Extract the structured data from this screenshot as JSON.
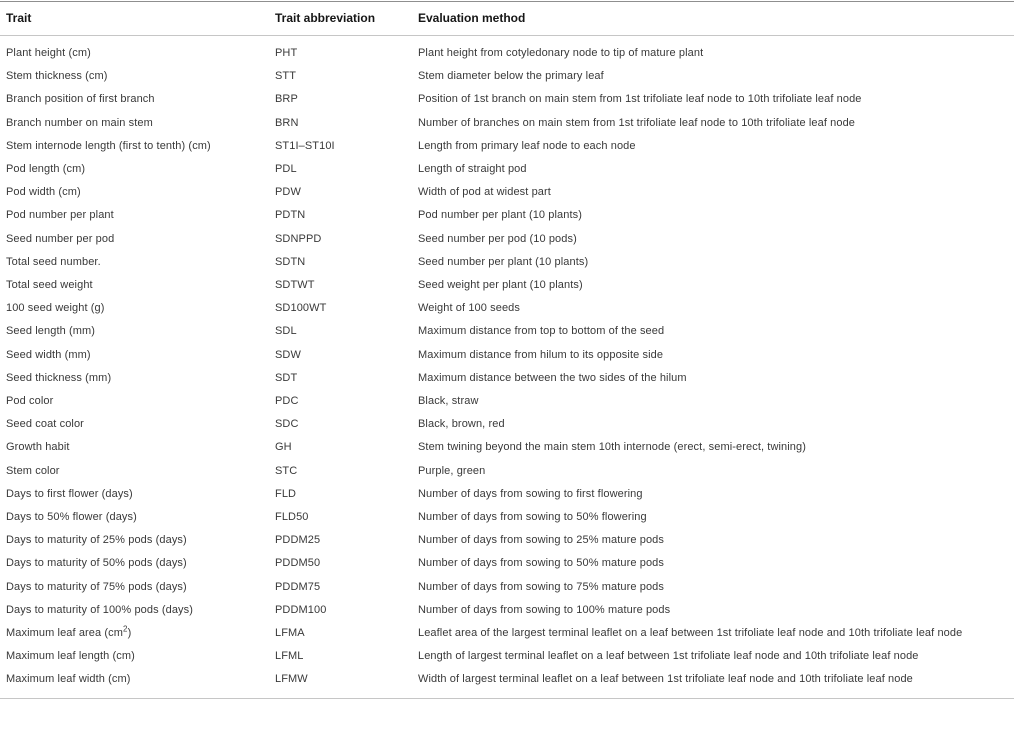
{
  "colors": {
    "background": "#ffffff",
    "top_rule": "#8f8f8f",
    "inner_rule": "#c6c6c6",
    "header_text": "#161616",
    "body_text": "#393939"
  },
  "table": {
    "columns": [
      "Trait",
      "Trait abbreviation",
      "Evaluation method"
    ],
    "rows": [
      {
        "trait": "Plant height (cm)",
        "abbr": "PHT",
        "method": "Plant height from cotyledonary node to tip of mature plant"
      },
      {
        "trait": "Stem thickness (cm)",
        "abbr": "STT",
        "method": "Stem diameter below the primary leaf"
      },
      {
        "trait": "Branch position of first branch",
        "abbr": "BRP",
        "method": "Position of 1st branch on main stem from 1st trifoliate leaf node to 10th trifoliate leaf node"
      },
      {
        "trait": "Branch number on main stem",
        "abbr": "BRN",
        "method": "Number of branches on main stem from 1st trifoliate leaf node to 10th trifoliate leaf node"
      },
      {
        "trait": "Stem internode length (first to tenth) (cm)",
        "abbr": "ST1I–ST10I",
        "method": "Length from primary leaf node to each node"
      },
      {
        "trait": "Pod length (cm)",
        "abbr": "PDL",
        "method": "Length of straight pod"
      },
      {
        "trait": "Pod width (cm)",
        "abbr": "PDW",
        "method": "Width of pod at widest part"
      },
      {
        "trait": "Pod number per plant",
        "abbr": "PDTN",
        "method": "Pod number per plant (10 plants)"
      },
      {
        "trait": "Seed number per pod",
        "abbr": "SDNPPD",
        "method": "Seed number per pod (10 pods)"
      },
      {
        "trait": "Total seed number.",
        "abbr": "SDTN",
        "method": "Seed number per plant (10 plants)"
      },
      {
        "trait": "Total seed weight",
        "abbr": "SDTWT",
        "method": "Seed weight per plant (10 plants)"
      },
      {
        "trait": "100 seed weight (g)",
        "abbr": "SD100WT",
        "method": "Weight of 100 seeds"
      },
      {
        "trait": "Seed length (mm)",
        "abbr": "SDL",
        "method": "Maximum distance from top to bottom of the seed"
      },
      {
        "trait": "Seed width (mm)",
        "abbr": "SDW",
        "method": "Maximum distance from hilum to its opposite side"
      },
      {
        "trait": "Seed thickness (mm)",
        "abbr": "SDT",
        "method": "Maximum distance between the two sides of the hilum"
      },
      {
        "trait": "Pod color",
        "abbr": "PDC",
        "method": "Black, straw"
      },
      {
        "trait": "Seed coat color",
        "abbr": "SDC",
        "method": "Black, brown, red"
      },
      {
        "trait": "Growth habit",
        "abbr": "GH",
        "method": "Stem twining beyond the main stem 10th internode (erect, semi-erect, twining)"
      },
      {
        "trait": "Stem color",
        "abbr": "STC",
        "method": "Purple, green"
      },
      {
        "trait": "Days to first flower (days)",
        "abbr": "FLD",
        "method": "Number of days from sowing to first flowering"
      },
      {
        "trait": "Days to 50% flower (days)",
        "abbr": "FLD50",
        "method": "Number of days from sowing to 50% flowering"
      },
      {
        "trait": "Days to maturity of 25% pods (days)",
        "abbr": "PDDM25",
        "method": "Number of days from sowing to 25% mature pods"
      },
      {
        "trait": "Days to maturity of 50% pods (days)",
        "abbr": "PDDM50",
        "method": "Number of days from sowing to 50% mature pods"
      },
      {
        "trait": "Days to maturity of 75% pods (days)",
        "abbr": "PDDM75",
        "method": "Number of days from sowing to 75% mature pods"
      },
      {
        "trait": "Days to maturity of 100% pods (days)",
        "abbr": "PDDM100",
        "method": "Number of days from sowing to 100% mature pods"
      },
      {
        "trait": "Maximum leaf area (cm²)",
        "abbr": "LFMA",
        "method": "Leaflet area of the largest terminal leaflet on a leaf between 1st trifoliate leaf node and 10th trifoliate leaf node"
      },
      {
        "trait": "Maximum leaf length (cm)",
        "abbr": "LFML",
        "method": "Length of largest terminal leaflet on a leaf between 1st trifoliate leaf node and 10th trifoliate leaf node"
      },
      {
        "trait": "Maximum leaf width (cm)",
        "abbr": "LFMW",
        "method": "Width of largest terminal leaflet on a leaf between 1st trifoliate leaf node and 10th trifoliate leaf node"
      }
    ]
  }
}
